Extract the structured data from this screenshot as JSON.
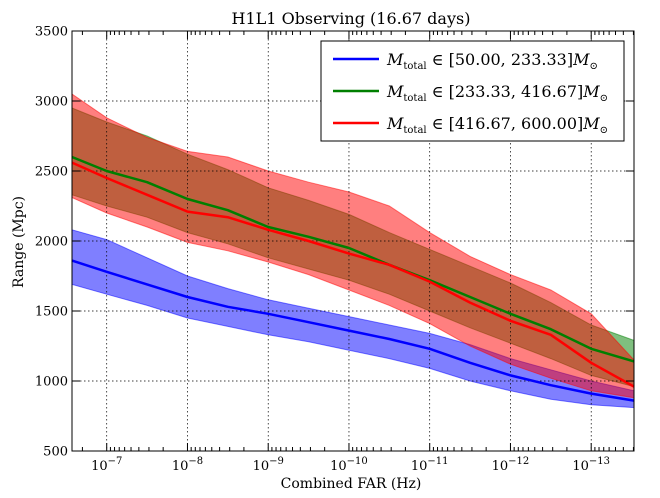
{
  "chart_data": {
    "type": "area",
    "title": "H1L1 Observing (16.67 days)",
    "xlabel": "Combined FAR (Hz)",
    "ylabel": "Range (Mpc)",
    "ylim": [
      500,
      3500
    ],
    "y_ticks": [
      500,
      1000,
      1500,
      2000,
      2500,
      3000,
      3500
    ],
    "x_scale": "log-reversed",
    "xlim_exponent": [
      -6.57,
      -13.53
    ],
    "x_ticks": [
      {
        "exp": -7,
        "label": "10",
        "sup": "−7"
      },
      {
        "exp": -8,
        "label": "10",
        "sup": "−8"
      },
      {
        "exp": -9,
        "label": "10",
        "sup": "−9"
      },
      {
        "exp": -10,
        "label": "10",
        "sup": "−10"
      },
      {
        "exp": -11,
        "label": "10",
        "sup": "−11"
      },
      {
        "exp": -12,
        "label": "10",
        "sup": "−12"
      },
      {
        "exp": -13,
        "label": "10",
        "sup": "−13"
      }
    ],
    "grid": true,
    "legend_position": "top-right",
    "series": [
      {
        "name": "M_total ∈ [50.00, 233.33] M⊙",
        "legend_sub": "total",
        "legend_range": " ∈ [50.00, 233.33]",
        "color": "#0000ff",
        "x_exp": [
          -6.57,
          -7,
          -7.5,
          -8,
          -8.5,
          -9,
          -9.5,
          -10,
          -10.5,
          -11,
          -11.5,
          -12,
          -12.5,
          -13,
          -13.53
        ],
        "values": [
          1860,
          1780,
          1690,
          1600,
          1530,
          1480,
          1420,
          1360,
          1300,
          1230,
          1130,
          1040,
          970,
          910,
          860
        ],
        "lower": [
          1690,
          1620,
          1540,
          1450,
          1390,
          1330,
          1280,
          1220,
          1160,
          1090,
          1000,
          930,
          870,
          830,
          810
        ],
        "upper": [
          2080,
          2010,
          1880,
          1750,
          1660,
          1580,
          1520,
          1460,
          1400,
          1340,
          1260,
          1160,
          1080,
          1000,
          930
        ]
      },
      {
        "name": "M_total ∈ [233.33, 416.67] M⊙",
        "legend_sub": "total",
        "legend_range": " ∈ [233.33, 416.67]",
        "color": "#007f00",
        "x_exp": [
          -6.57,
          -7,
          -7.5,
          -8,
          -8.5,
          -9,
          -9.5,
          -10,
          -10.5,
          -11,
          -11.5,
          -12,
          -12.5,
          -13,
          -13.53
        ],
        "values": [
          2600,
          2500,
          2420,
          2300,
          2220,
          2100,
          2030,
          1950,
          1830,
          1720,
          1600,
          1480,
          1370,
          1230,
          1140
        ],
        "lower": [
          2330,
          2250,
          2170,
          2060,
          1980,
          1880,
          1800,
          1720,
          1620,
          1500,
          1380,
          1270,
          1160,
          1040,
          960
        ],
        "upper": [
          2950,
          2850,
          2750,
          2620,
          2510,
          2380,
          2290,
          2190,
          2060,
          1940,
          1820,
          1700,
          1560,
          1400,
          1290
        ]
      },
      {
        "name": "M_total ∈ [416.67, 600.00] M⊙",
        "legend_sub": "total",
        "legend_range": " ∈ [416.67, 600.00]",
        "color": "#ff0000",
        "x_exp": [
          -6.57,
          -7,
          -7.5,
          -8,
          -8.5,
          -9,
          -9.5,
          -10,
          -10.5,
          -11,
          -11.5,
          -12,
          -12.5,
          -13,
          -13.53
        ],
        "values": [
          2560,
          2450,
          2330,
          2210,
          2170,
          2080,
          2000,
          1910,
          1830,
          1710,
          1560,
          1430,
          1330,
          1130,
          960
        ],
        "lower": [
          2310,
          2200,
          2100,
          1990,
          1930,
          1850,
          1760,
          1650,
          1540,
          1410,
          1250,
          1120,
          1020,
          930,
          880
        ],
        "upper": [
          3050,
          2880,
          2740,
          2640,
          2600,
          2500,
          2420,
          2350,
          2250,
          2060,
          1890,
          1760,
          1650,
          1480,
          1150
        ]
      }
    ]
  }
}
